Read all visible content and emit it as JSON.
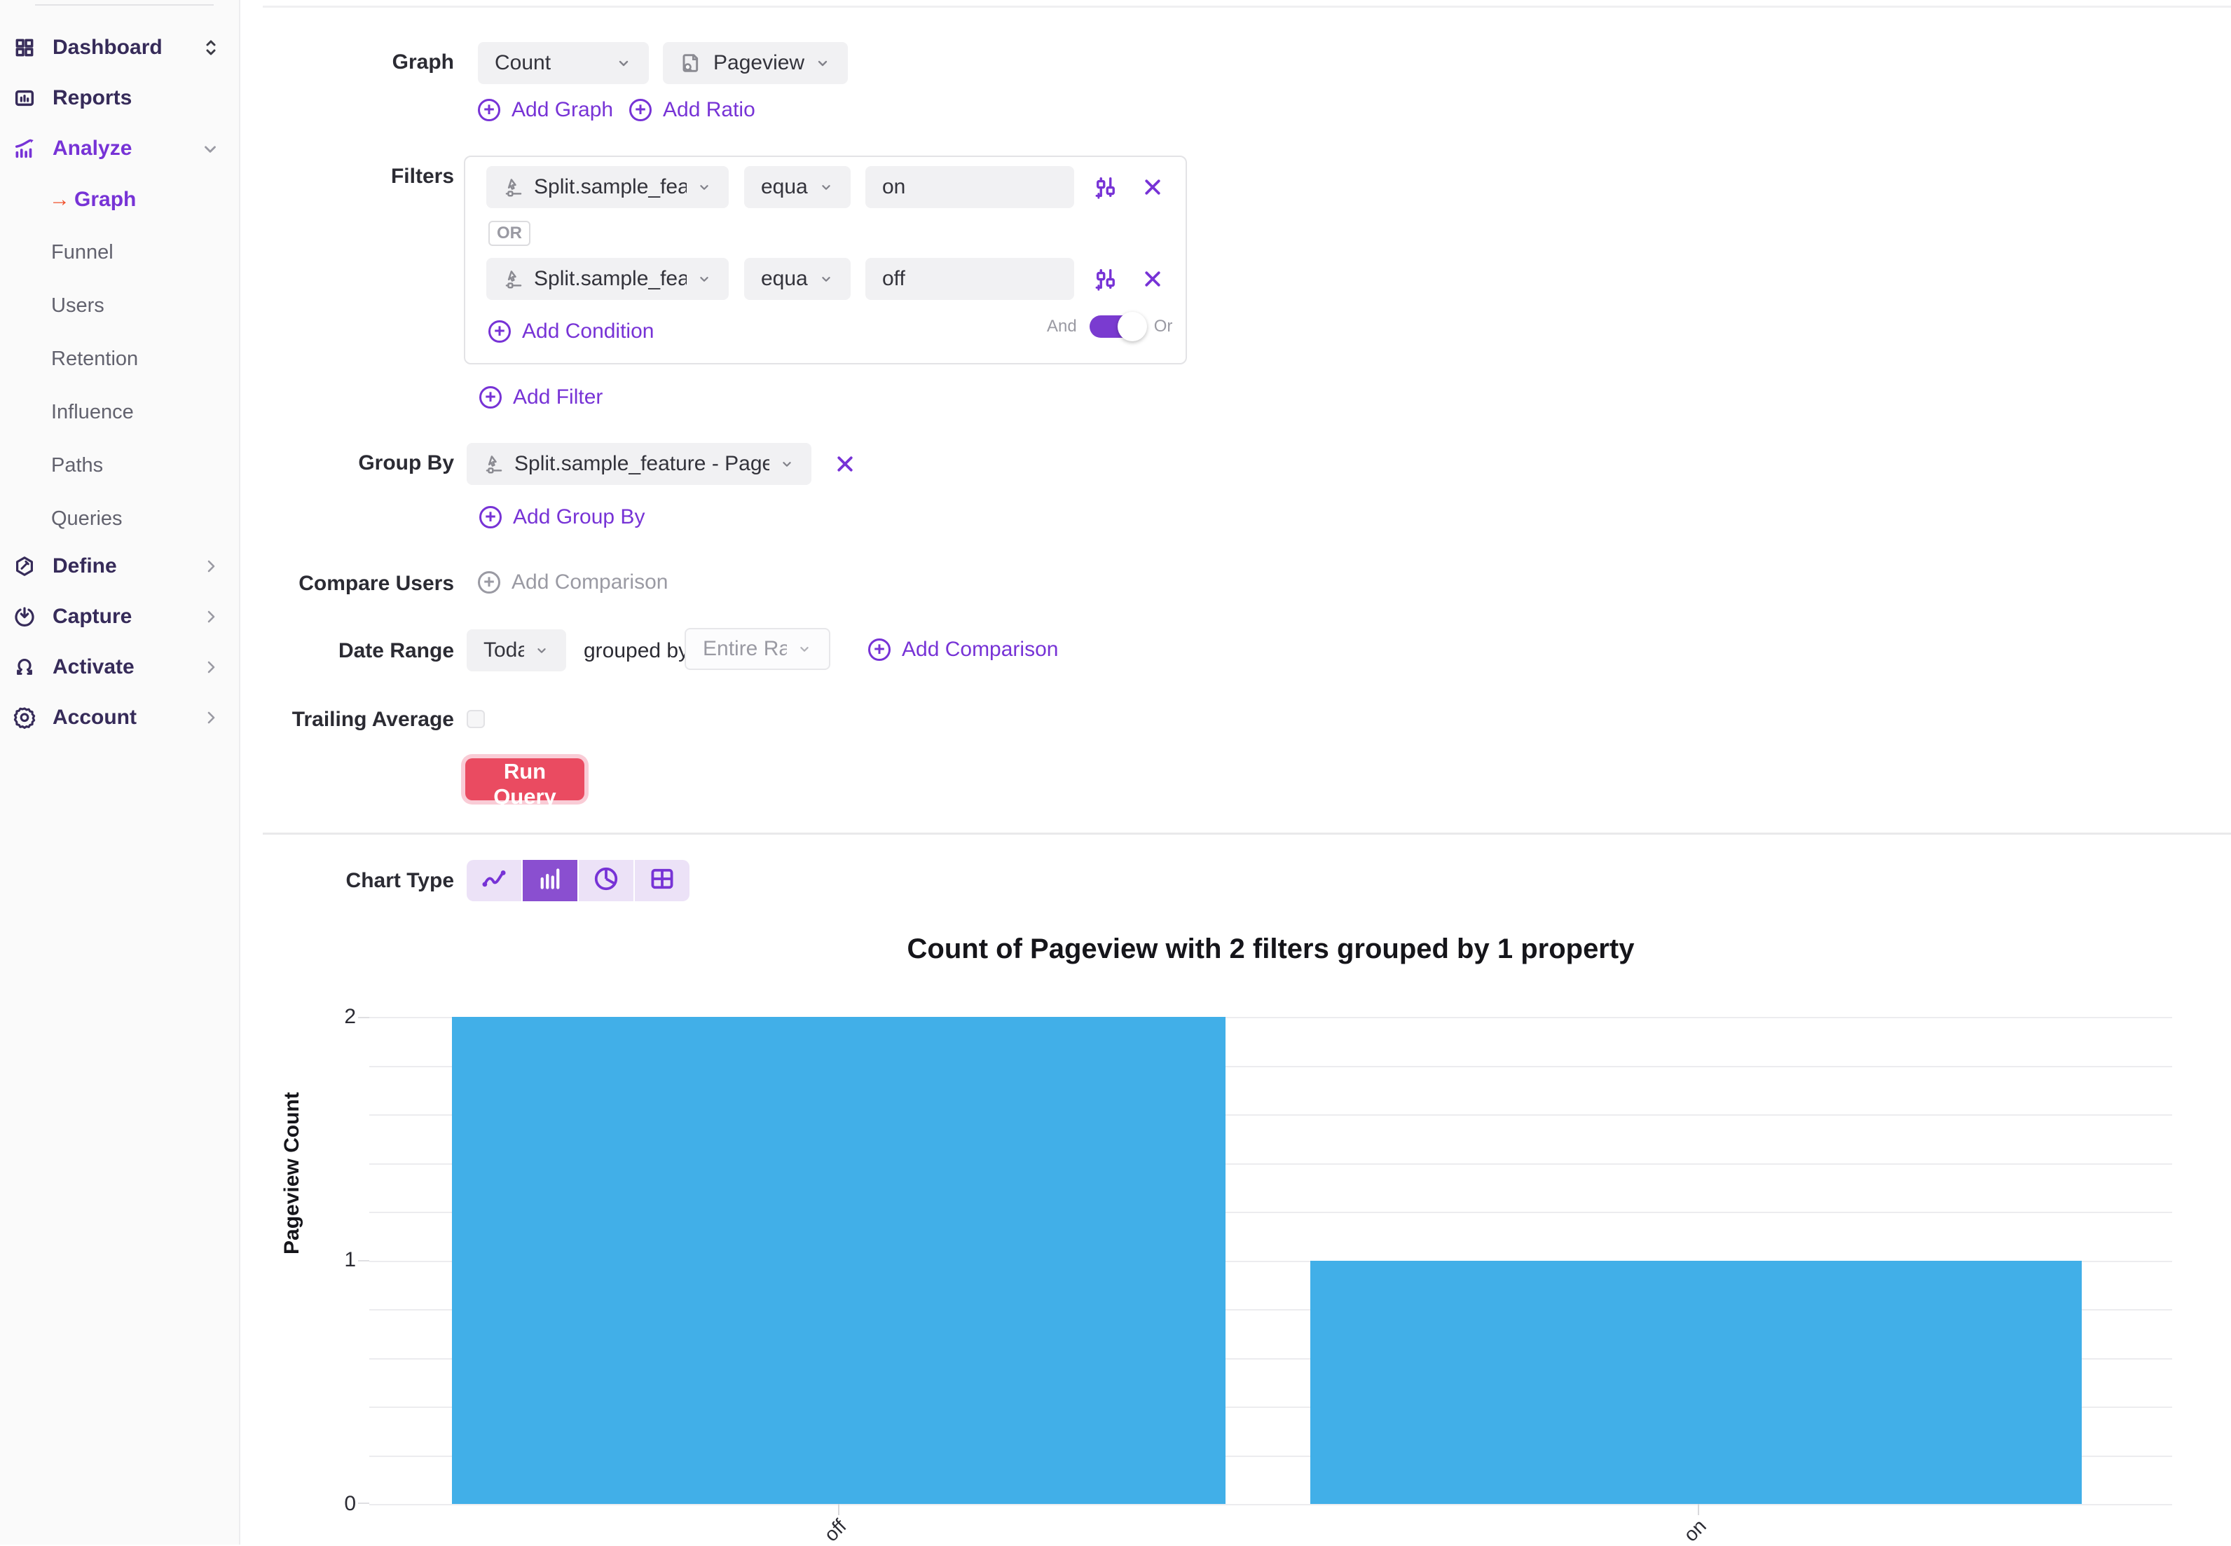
{
  "colors": {
    "accent_purple": "#7733d6",
    "sidebar_text": "#362b59",
    "run_query_red": "#ea4b61",
    "bar_blue": "#41afe8",
    "chart_type_selected_bg": "#8a4fd0",
    "chart_type_tile_bg": "#ece2f7",
    "graph_arrow_orange": "#f0512c"
  },
  "sidebar": {
    "items": [
      {
        "label": "Dashboard"
      },
      {
        "label": "Reports"
      },
      {
        "label": "Analyze"
      },
      {
        "label": "Graph"
      },
      {
        "label": "Funnel"
      },
      {
        "label": "Users"
      },
      {
        "label": "Retention"
      },
      {
        "label": "Influence"
      },
      {
        "label": "Paths"
      },
      {
        "label": "Queries"
      },
      {
        "label": "Define"
      },
      {
        "label": "Capture"
      },
      {
        "label": "Activate"
      },
      {
        "label": "Account"
      }
    ]
  },
  "query": {
    "graph_label": "Graph",
    "metric_value": "Count",
    "event_value": "Pageview",
    "add_graph": "Add Graph",
    "add_ratio": "Add Ratio",
    "filters_label": "Filters",
    "filters": [
      {
        "property": "Split.sample_feature",
        "operator": "equals",
        "value": "on"
      },
      {
        "property": "Split.sample_feature",
        "operator": "equals",
        "value": "off"
      }
    ],
    "or_badge": "OR",
    "add_condition": "Add Condition",
    "and_label": "And",
    "or_label": "Or",
    "add_filter": "Add Filter",
    "group_by_label": "Group By",
    "group_by_value": "Split.sample_feature - Pageview",
    "add_group_by": "Add Group By",
    "compare_users_label": "Compare Users",
    "add_comparison_disabled": "Add Comparison",
    "date_range_label": "Date Range",
    "date_range_value": "Today",
    "grouped_by_text": "grouped by",
    "granularity_placeholder": "Entire Range",
    "add_comparison": "Add Comparison",
    "trailing_average_label": "Trailing Average",
    "run_query": "Run Query"
  },
  "chart_section": {
    "chart_type_label": "Chart Type",
    "chart_types": [
      "line",
      "bar",
      "pie",
      "table"
    ],
    "selected_chart_type": "bar"
  },
  "chart_data": {
    "type": "bar",
    "title": "Count of Pageview with 2 filters grouped by 1 property",
    "categories": [
      "off",
      "on"
    ],
    "values": [
      2,
      1
    ],
    "xlabel": "",
    "ylabel": "Pageview Count",
    "ylim": [
      0,
      2
    ],
    "yticks": [
      0,
      1,
      2
    ],
    "ytick_labels_top_to_bottom": [
      "2",
      "1",
      "0"
    ],
    "gridline_interval": 0.2,
    "grid": true,
    "legend": false,
    "bar_color": "#41afe8"
  }
}
